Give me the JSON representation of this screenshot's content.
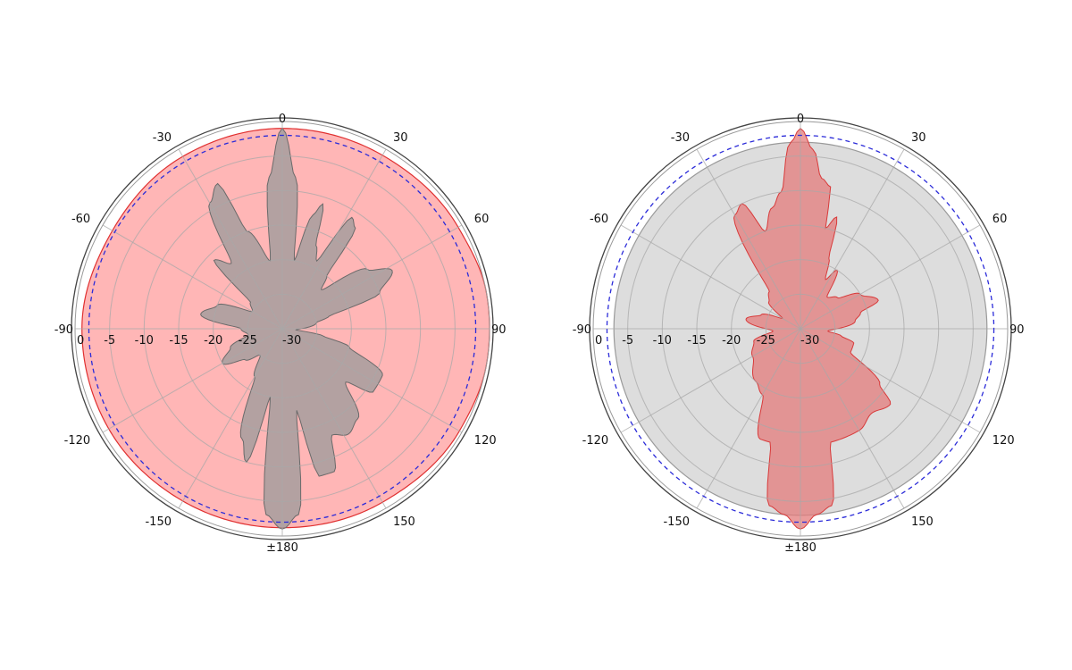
{
  "chart_data": [
    {
      "type": "polar",
      "angle_ticks": [
        "0",
        "30",
        "60",
        "90",
        "120",
        "150",
        "±180",
        "-150",
        "-120",
        "-90",
        "-60",
        "-30"
      ],
      "radial_ticks": [
        "0",
        "-5",
        "-10",
        "-15",
        "-20",
        "-25",
        "-30"
      ],
      "rlim": [
        -30,
        0
      ],
      "grid": true,
      "reference_level": -2,
      "colors": {
        "background_fill": "#ff9a9a",
        "pattern_fill": "#999999",
        "reference": "#2b2bd9",
        "outline": "#e03030"
      },
      "series": [
        {
          "kind": "pattern",
          "points": [
            [
              0,
              -1
            ],
            [
              5,
              -8
            ],
            [
              10,
              -20
            ],
            [
              15,
              -13
            ],
            [
              18,
              -11
            ],
            [
              22,
              -17
            ],
            [
              27,
              -19
            ],
            [
              32,
              -11
            ],
            [
              36,
              -12
            ],
            [
              40,
              -20
            ],
            [
              45,
              -22
            ],
            [
              55,
              -15
            ],
            [
              62,
              -12
            ],
            [
              70,
              -15
            ],
            [
              75,
              -23
            ],
            [
              80,
              -25
            ],
            [
              95,
              -28
            ],
            [
              100,
              -24
            ],
            [
              105,
              -20
            ],
            [
              115,
              -14
            ],
            [
              125,
              -14
            ],
            [
              130,
              -18
            ],
            [
              140,
              -13
            ],
            [
              148,
              -12
            ],
            [
              155,
              -13
            ],
            [
              160,
              -8
            ],
            [
              166,
              -8
            ],
            [
              170,
              -18
            ],
            [
              175,
              -3
            ],
            [
              180,
              -1
            ],
            [
              185,
              -3
            ],
            [
              190,
              -20
            ],
            [
              195,
              -10
            ],
            [
              200,
              -13
            ],
            [
              210,
              -22
            ],
            [
              220,
              -25
            ],
            [
              230,
              -23
            ],
            [
              240,
              -20
            ],
            [
              250,
              -22
            ],
            [
              260,
              -25
            ],
            [
              270,
              -24
            ],
            [
              280,
              -18
            ],
            [
              290,
              -20
            ],
            [
              300,
              -25
            ],
            [
              310,
              -24
            ],
            [
              315,
              -16
            ],
            [
              322,
              -18
            ],
            [
              330,
              -9
            ],
            [
              336,
              -7
            ],
            [
              340,
              -15
            ],
            [
              350,
              -20
            ],
            [
              355,
              -8
            ]
          ]
        },
        {
          "kind": "background",
          "points": [
            [
              0,
              -1
            ],
            [
              30,
              -1
            ],
            [
              60,
              -0.6
            ],
            [
              80,
              0
            ],
            [
              90,
              0
            ],
            [
              100,
              0
            ],
            [
              120,
              -0.4
            ],
            [
              150,
              -1
            ],
            [
              180,
              -1.2
            ],
            [
              210,
              -1.2
            ],
            [
              240,
              -1
            ],
            [
              270,
              -1
            ],
            [
              300,
              -1.6
            ],
            [
              330,
              -1.2
            ]
          ]
        }
      ]
    },
    {
      "type": "polar",
      "angle_ticks": [
        "0",
        "30",
        "60",
        "90",
        "120",
        "150",
        "±180",
        "-150",
        "-120",
        "-90",
        "-60",
        "-30"
      ],
      "radial_ticks": [
        "0",
        "-5",
        "-10",
        "-15",
        "-20",
        "-25",
        "-30"
      ],
      "rlim": [
        -30,
        0
      ],
      "grid": true,
      "reference_level": -2,
      "colors": {
        "background_fill": "#d0d0d0",
        "pattern_fill": "#e37b7b",
        "reference": "#2b2bd9",
        "outline": "#d83a3a"
      },
      "series": [
        {
          "kind": "pattern",
          "points": [
            [
              0,
              -1
            ],
            [
              4,
              -4
            ],
            [
              8,
              -8
            ],
            [
              12,
              -9
            ],
            [
              14,
              -15
            ],
            [
              18,
              -13
            ],
            [
              22,
              -19
            ],
            [
              27,
              -22
            ],
            [
              32,
              -20
            ],
            [
              40,
              -24
            ],
            [
              50,
              -23
            ],
            [
              60,
              -20
            ],
            [
              70,
              -18
            ],
            [
              75,
              -21
            ],
            [
              82,
              -22
            ],
            [
              95,
              -26
            ],
            [
              100,
              -24
            ],
            [
              105,
              -22
            ],
            [
              115,
              -22
            ],
            [
              125,
              -16
            ],
            [
              130,
              -13
            ],
            [
              140,
              -14
            ],
            [
              150,
              -13
            ],
            [
              160,
              -13
            ],
            [
              165,
              -13
            ],
            [
              170,
              -4
            ],
            [
              175,
              -3
            ],
            [
              180,
              -1
            ],
            [
              185,
              -3
            ],
            [
              190,
              -4
            ],
            [
              195,
              -13
            ],
            [
              200,
              -13
            ],
            [
              210,
              -19
            ],
            [
              220,
              -20
            ],
            [
              240,
              -22
            ],
            [
              255,
              -23
            ],
            [
              265,
              -26
            ],
            [
              280,
              -22
            ],
            [
              290,
              -24
            ],
            [
              300,
              -27
            ],
            [
              310,
              -24
            ],
            [
              320,
              -23
            ],
            [
              330,
              -11
            ],
            [
              335,
              -10
            ],
            [
              340,
              -15
            ],
            [
              347,
              -12
            ],
            [
              352,
              -10
            ],
            [
              357,
              -3
            ]
          ]
        },
        {
          "kind": "background",
          "points": [
            [
              0,
              -3
            ],
            [
              30,
              -3
            ],
            [
              60,
              -3
            ],
            [
              90,
              -3
            ],
            [
              120,
              -3
            ],
            [
              150,
              -3
            ],
            [
              180,
              -3
            ],
            [
              210,
              -3
            ],
            [
              240,
              -3
            ],
            [
              270,
              -3
            ],
            [
              300,
              -3
            ],
            [
              330,
              -3
            ]
          ]
        }
      ]
    }
  ]
}
